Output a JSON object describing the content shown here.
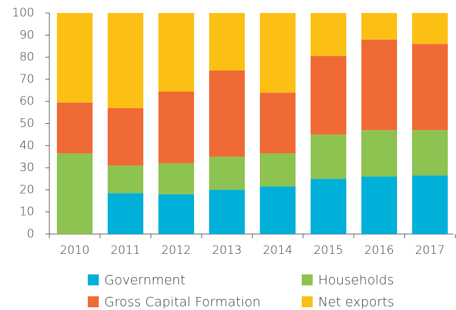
{
  "chart_data": {
    "type": "stacked-bar",
    "categories": [
      "2010",
      "2011",
      "2012",
      "2013",
      "2014",
      "2015",
      "2016",
      "2017"
    ],
    "series": [
      {
        "name": "Government",
        "color": "#00b0d8",
        "values": [
          0,
          18.5,
          18,
          20,
          21.5,
          25,
          26,
          26.5
        ]
      },
      {
        "name": "Households",
        "color": "#8dc350",
        "values": [
          36.5,
          12.5,
          14,
          15,
          15,
          20,
          21,
          20.5
        ]
      },
      {
        "name": "Gross Capital Formation",
        "color": "#f06a35",
        "values": [
          23,
          26,
          32.5,
          39,
          27.5,
          35.5,
          41,
          39
        ]
      },
      {
        "name": "Net exports",
        "color": "#fcc015",
        "values": [
          40.5,
          43,
          35.5,
          26,
          36,
          19.5,
          12,
          14
        ]
      }
    ],
    "ylim": [
      0,
      100
    ],
    "yticks": [
      0,
      10,
      20,
      30,
      40,
      50,
      60,
      70,
      80,
      90,
      100
    ]
  }
}
